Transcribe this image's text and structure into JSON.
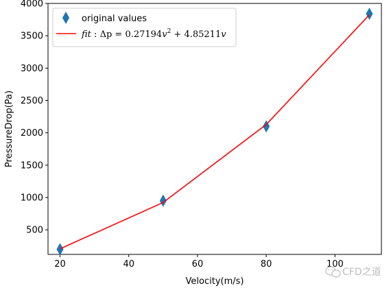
{
  "chart_data": {
    "type": "scatter",
    "title": "",
    "xlabel": "Velocity(m/s)",
    "ylabel": "PressureDrop(Pa)",
    "xlim": [
      16.5,
      113.5
    ],
    "ylim": [
      120,
      4000
    ],
    "xticks": [
      20,
      40,
      60,
      80,
      100
    ],
    "yticks": [
      500,
      1000,
      1500,
      2000,
      2500,
      3000,
      3500,
      4000
    ],
    "grid": false,
    "legend_position": "top-left",
    "series": [
      {
        "name": "original values",
        "kind": "scatter",
        "marker": "thin-diamond",
        "color": "#1f77b4",
        "x": [
          20,
          50,
          80,
          110
        ],
        "y": [
          200,
          950,
          2100,
          3840
        ]
      },
      {
        "name": "fit : Δp = 0.27194v² + 4.85211v",
        "kind": "line",
        "color": "#ff0000",
        "coefficients": {
          "a": 0.27194,
          "b": 4.85211
        },
        "x": [
          20,
          50,
          80,
          110
        ],
        "y": [
          205.8,
          922.5,
          2128.6,
          3824.2
        ]
      }
    ],
    "legend": {
      "scatter_label": "original values",
      "fit_label_prefix": "fit",
      "fit_label_colon": " : ",
      "fit_label_lhs": "Δp",
      "fit_label_eq": " = 0.27194",
      "fit_label_var1": "v",
      "fit_label_exp": "2",
      "fit_label_plus": " + 4.85211",
      "fit_label_var2": "v"
    }
  },
  "watermark": {
    "text": "CFD之道",
    "icon": "wechat-icon"
  }
}
